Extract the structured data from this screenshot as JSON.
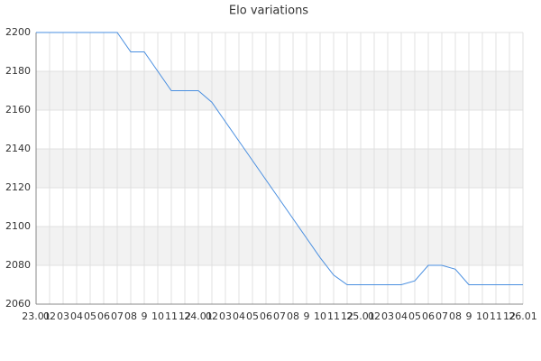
{
  "chart_data": {
    "type": "line",
    "title": "Elo variations",
    "categories": [
      "23.01",
      "02",
      "03",
      "04",
      "05",
      "06",
      "07",
      "08",
      "9",
      "10",
      "11",
      "12",
      "24.01",
      "02",
      "03",
      "04",
      "05",
      "06",
      "07",
      "08",
      "9",
      "10",
      "11",
      "12",
      "25.01",
      "02",
      "03",
      "04",
      "05",
      "06",
      "07",
      "08",
      "9",
      "10",
      "11",
      "12",
      "26.01"
    ],
    "series": [
      {
        "name": "Elo",
        "color": "#4a8fe0",
        "values": [
          2200,
          2200,
          2200,
          2200,
          2200,
          2200,
          2200,
          2190,
          2190,
          2180,
          2170,
          2170,
          2170,
          2164,
          2154,
          2144,
          2134,
          2124,
          2114,
          2104,
          2094,
          2084,
          2075,
          2070,
          2070,
          2070,
          2070,
          2070,
          2072,
          2080,
          2080,
          2078,
          2070,
          2070,
          2070,
          2070,
          2070
        ]
      }
    ],
    "ylim": [
      2060,
      2200
    ],
    "yticks": [
      2060,
      2080,
      2100,
      2120,
      2140,
      2160,
      2180,
      2200
    ],
    "grid": true
  }
}
